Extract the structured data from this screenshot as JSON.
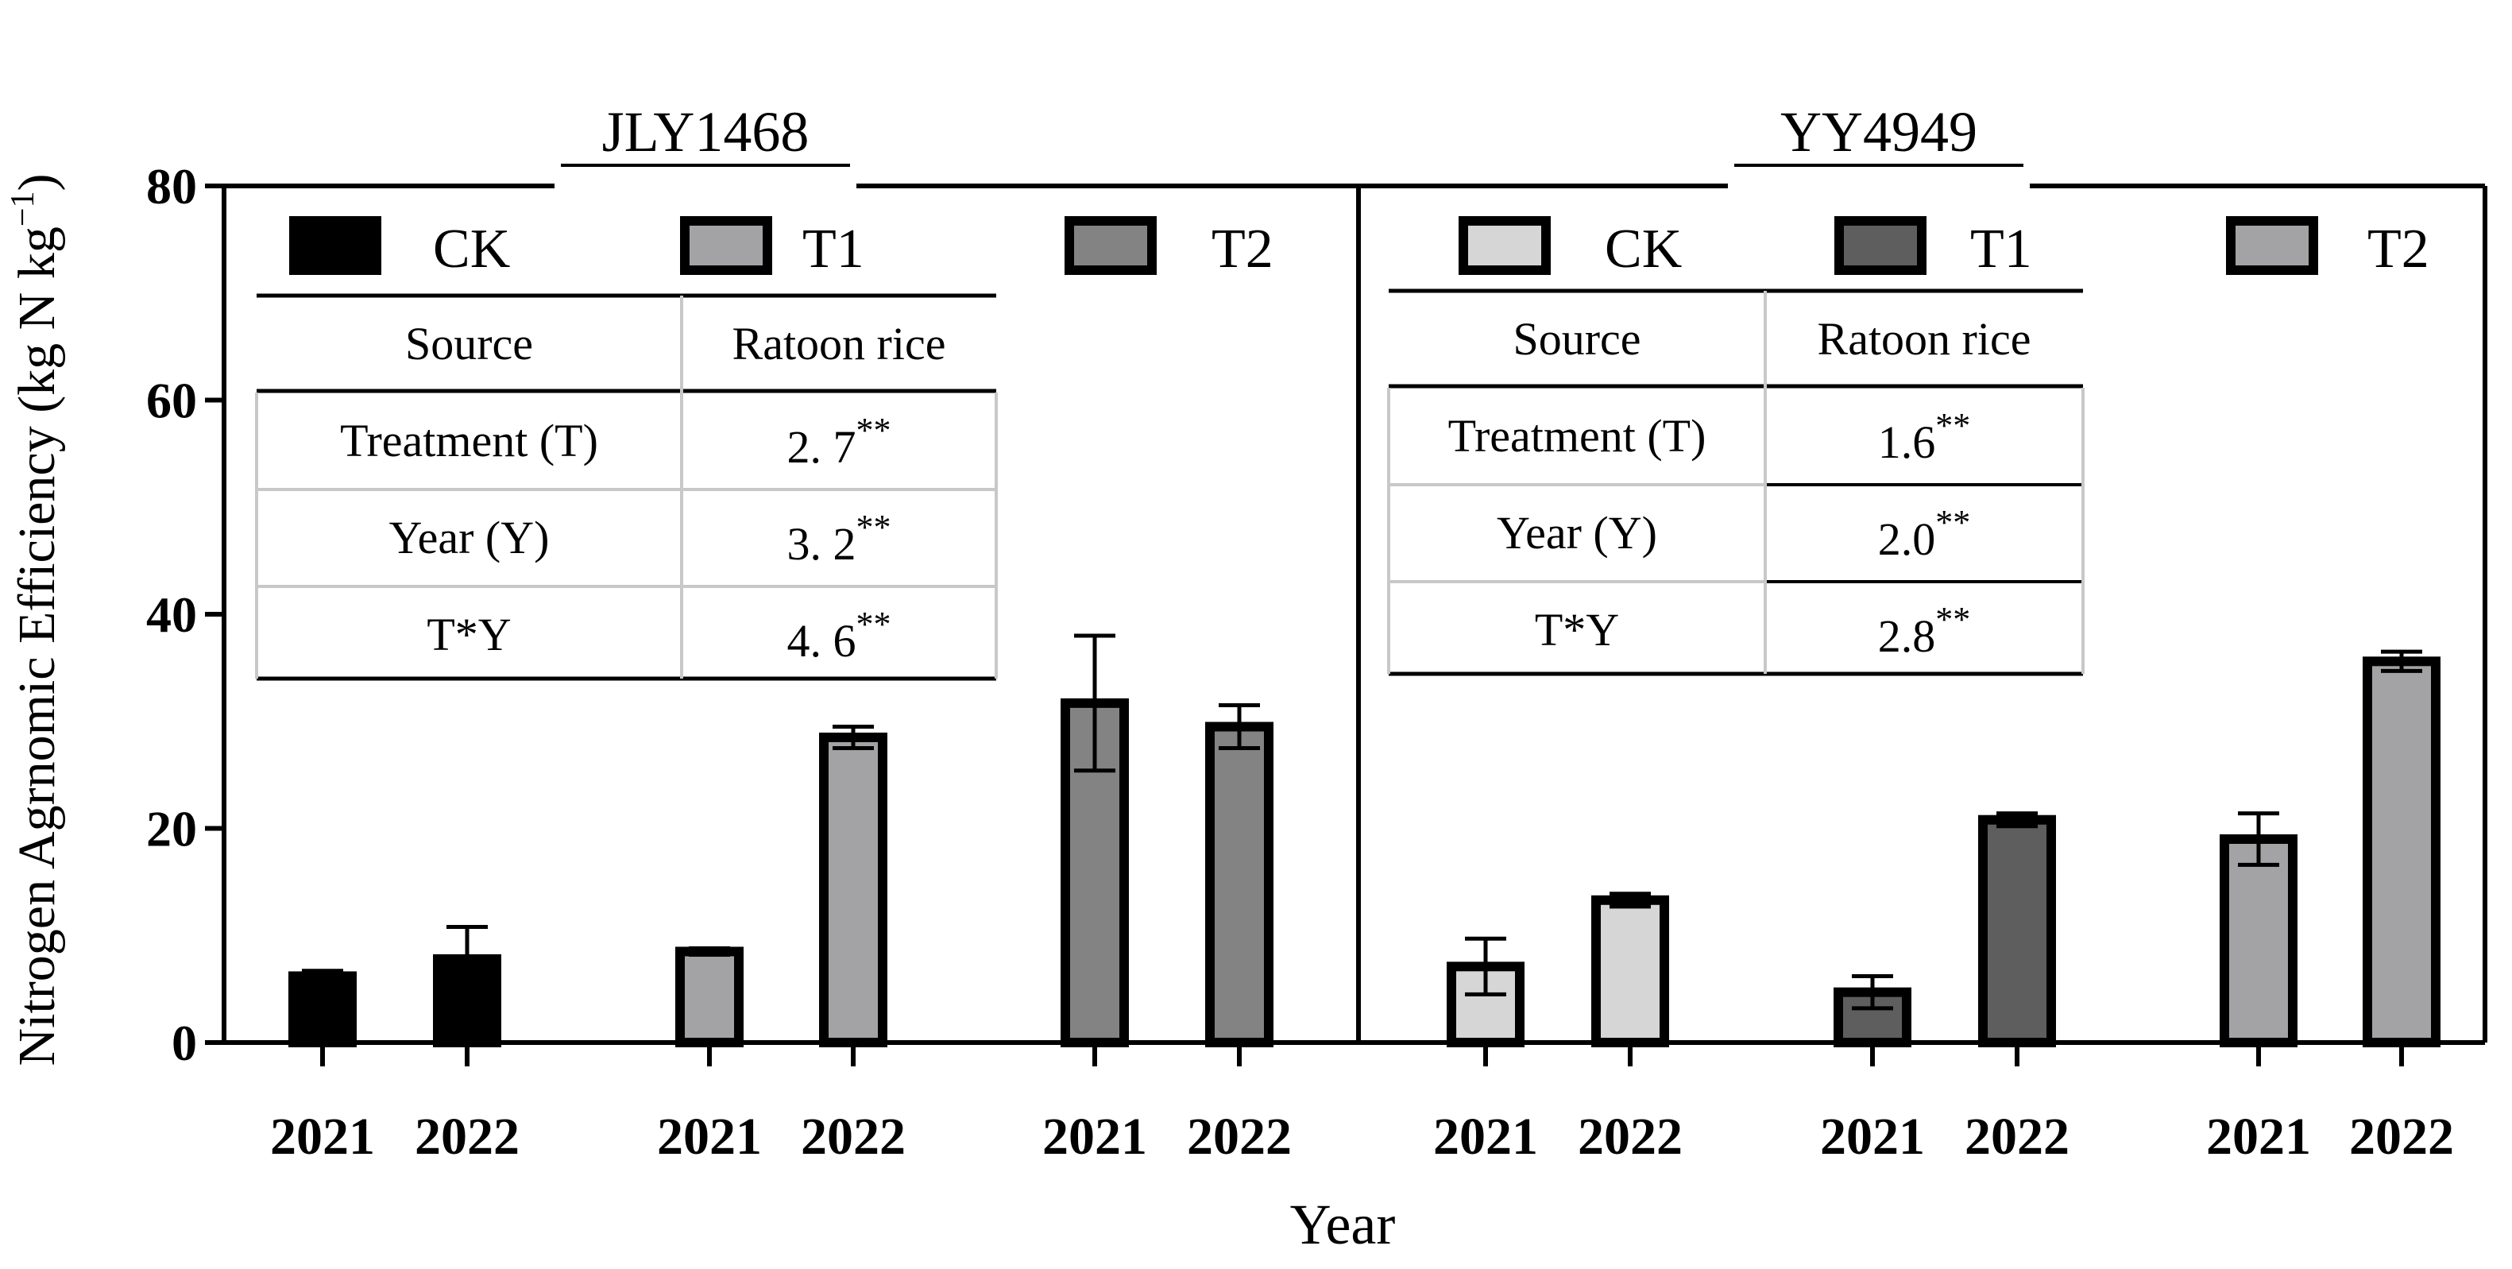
{
  "chart_data": {
    "type": "bar",
    "ylabel": "Nitrogen Agrnomic Efficiency (kg N kg",
    "ylabel_sup": "−1",
    "ylabel_close": ")",
    "xlabel": "Year",
    "ylim": [
      0,
      80
    ],
    "yticks": [
      0,
      20,
      40,
      60,
      80
    ],
    "ytick_labels": [
      "0",
      "20",
      "40",
      "60",
      "80"
    ],
    "panels": [
      {
        "title": "JLY1468",
        "legend": [
          {
            "label": "CK",
            "color": "#000000"
          },
          {
            "label": "T1",
            "color": "#a3a3a6"
          },
          {
            "label": "T2",
            "color": "#838383"
          }
        ],
        "groups": [
          {
            "treatment": "CK",
            "color": "#000000",
            "bars": [
              {
                "year": "2021",
                "value": 6.2,
                "err": 0.5
              },
              {
                "year": "2022",
                "value": 7.8,
                "err": 3.0
              }
            ]
          },
          {
            "treatment": "T1",
            "color": "#a3a3a6",
            "bars": [
              {
                "year": "2021",
                "value": 8.5,
                "err": 0.3
              },
              {
                "year": "2022",
                "value": 28.5,
                "err": 1.0
              }
            ]
          },
          {
            "treatment": "T2",
            "color": "#838383",
            "bars": [
              {
                "year": "2021",
                "value": 31.7,
                "err": 6.3
              },
              {
                "year": "2022",
                "value": 29.5,
                "err": 2.0
              }
            ]
          }
        ],
        "table": {
          "header": [
            "Source",
            "Ratoon rice"
          ],
          "rows": [
            {
              "source": "Treatment (T)",
              "value": "2. 7",
              "sig": "**"
            },
            {
              "source": "Year (Y)",
              "value": "3. 2",
              "sig": "**"
            },
            {
              "source": "T*Y",
              "value": "4. 6",
              "sig": "**"
            }
          ]
        }
      },
      {
        "title": "YY4949",
        "legend": [
          {
            "label": "CK",
            "color": "#d6d6d6"
          },
          {
            "label": "T1",
            "color": "#5e5e5e"
          },
          {
            "label": "T2",
            "color": "#a3a3a6"
          }
        ],
        "groups": [
          {
            "treatment": "CK",
            "color": "#d6d6d6",
            "bars": [
              {
                "year": "2021",
                "value": 7.1,
                "err": 2.6
              },
              {
                "year": "2022",
                "value": 13.3,
                "err": 0.6
              }
            ]
          },
          {
            "treatment": "T1",
            "color": "#5e5e5e",
            "bars": [
              {
                "year": "2021",
                "value": 4.7,
                "err": 1.5
              },
              {
                "year": "2022",
                "value": 20.8,
                "err": 0.6
              }
            ]
          },
          {
            "treatment": "T2",
            "color": "#a3a3a6",
            "bars": [
              {
                "year": "2021",
                "value": 19.0,
                "err": 2.4
              },
              {
                "year": "2022",
                "value": 35.6,
                "err": 0.9
              }
            ]
          }
        ],
        "table": {
          "header": [
            "Source",
            "Ratoon rice"
          ],
          "rows": [
            {
              "source": "Treatment (T)",
              "value": "1.6",
              "sig": "**"
            },
            {
              "source": "Year (Y)",
              "value": "2.0",
              "sig": "**"
            },
            {
              "source": "T*Y",
              "value": "2.8",
              "sig": "**"
            }
          ]
        }
      }
    ]
  }
}
